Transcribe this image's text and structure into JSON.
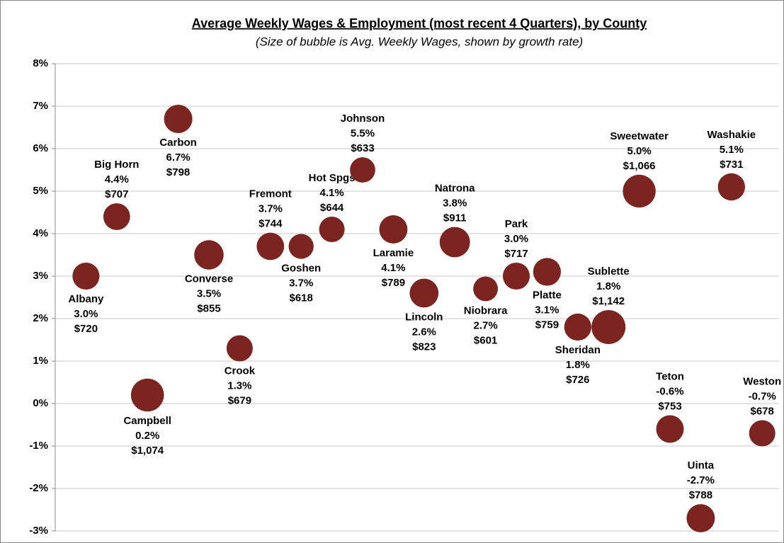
{
  "chart_data": {
    "type": "bubble",
    "title": "Average Weekly Wages & Employment (most recent 4 Quarters), by County",
    "subtitle": "(Size of bubble is Avg. Weekly Wages, shown by growth rate)",
    "categories": [
      "Albany",
      "Big Horn",
      "Campbell",
      "Carbon",
      "Converse",
      "Crook",
      "Fremont",
      "Goshen",
      "Hot Spgs",
      "Johnson",
      "Laramie",
      "Lincoln",
      "Natrona",
      "Niobrara",
      "Park",
      "Platte",
      "Sheridan",
      "Sublette",
      "Sweetwater",
      "Teton",
      "Uinta",
      "Washakie",
      "Weston"
    ],
    "values": [
      3.0,
      4.4,
      0.2,
      6.7,
      3.5,
      1.3,
      3.7,
      3.7,
      4.1,
      5.5,
      4.1,
      2.6,
      3.8,
      2.7,
      3.0,
      3.1,
      1.8,
      1.8,
      5.0,
      -0.6,
      -2.7,
      5.1,
      -0.7
    ],
    "value_labels": [
      "3.0%",
      "4.4%",
      "0.2%",
      "6.7%",
      "3.5%",
      "1.3%",
      "3.7%",
      "3.7%",
      "4.1%",
      "5.5%",
      "4.1%",
      "2.6%",
      "3.8%",
      "2.7%",
      "3.0%",
      "3.1%",
      "1.8%",
      "1.8%",
      "5.0%",
      "-0.6%",
      "-2.7%",
      "5.1%",
      "-0.7%"
    ],
    "sizes": [
      720,
      707,
      1074,
      798,
      855,
      679,
      744,
      618,
      644,
      633,
      789,
      823,
      911,
      601,
      717,
      759,
      726,
      1142,
      1066,
      753,
      788,
      731,
      678
    ],
    "size_labels": [
      "$720",
      "$707",
      "$1,074",
      "$798",
      "$855",
      "$679",
      "$744",
      "$618",
      "$644",
      "$633",
      "$789",
      "$823",
      "$911",
      "$601",
      "$717",
      "$759",
      "$726",
      "$1,142",
      "$1,066",
      "$753",
      "$788",
      "$731",
      "$678"
    ],
    "color": "#7b2420",
    "ylim": [
      -3,
      8
    ],
    "yticks": [
      {
        "value": -3,
        "label": "-3%"
      },
      {
        "value": -2,
        "label": "-2%"
      },
      {
        "value": -1,
        "label": "-1%"
      },
      {
        "value": 0,
        "label": "0%"
      },
      {
        "value": 1,
        "label": "1%"
      },
      {
        "value": 2,
        "label": "2%"
      },
      {
        "value": 3,
        "label": "3%"
      },
      {
        "value": 4,
        "label": "4%"
      },
      {
        "value": 5,
        "label": "5%"
      },
      {
        "value": 6,
        "label": "6%"
      },
      {
        "value": 7,
        "label": "7%"
      },
      {
        "value": 8,
        "label": "8%"
      }
    ],
    "grid": true
  }
}
